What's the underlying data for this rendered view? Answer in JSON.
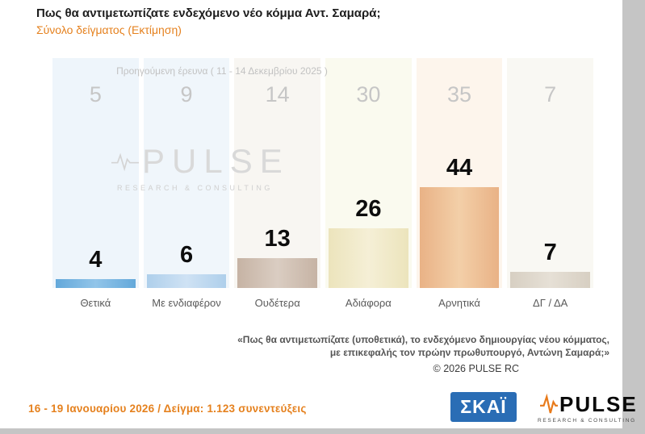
{
  "title": "Πως θα αντιμετωπίζατε ενδεχόμενο νέο κόμμα Αντ. Σαμαρά;",
  "subtitle": "Σύνολο δείγματος  (Εκτίμηση)",
  "previous_label": "Προηγούμενη έρευνα ( 11 - 14 Δεκεμβρίου 2025 )",
  "chart_data": {
    "type": "bar",
    "title": "Πως θα αντιμετωπίζατε ενδεχόμενο νέο κόμμα Αντ. Σαμαρά;",
    "subtitle": "Σύνολο δείγματος (Εκτίμηση)",
    "categories": [
      "Θετικά",
      "Με ενδιαφέρον",
      "Ουδέτερα",
      "Αδιάφορα",
      "Αρνητικά",
      "ΔΓ / ΔΑ"
    ],
    "series": [
      {
        "name": "Προηγούμενη έρευνα ( 11 - 14 Δεκεμβρίου 2025 )",
        "values": [
          5,
          9,
          14,
          30,
          35,
          7
        ]
      },
      {
        "name": "16 - 19 Ιανουαρίου 2026",
        "values": [
          4,
          6,
          13,
          26,
          44,
          7
        ]
      }
    ],
    "ylim": [
      0,
      50
    ],
    "grid": false,
    "legend_position": "none",
    "bar_colors": [
      "#63a8da",
      "#aecfeb",
      "#c6b3a4",
      "#ece4bc",
      "#e9b286",
      "#d7cfc2"
    ],
    "bar_colors_light": [
      "#92c5e9",
      "#cfe2f4",
      "#dacdc2",
      "#f5efd6",
      "#f3cfa8",
      "#e6e0d6"
    ],
    "band_colors": [
      "#eef5fb",
      "#f0f6fb",
      "#f8f6f2",
      "#fafaef",
      "#fdf5ec",
      "#f9f8f3"
    ]
  },
  "watermark": {
    "brand": "PULSE",
    "sub": "RESEARCH & CONSULTING"
  },
  "footnote": {
    "line1": "«Πως θα αντιμετωπίζατε (υποθετικά), το ενδεχόμενο δημιουργίας νέου κόμματος,",
    "line2": "με επικεφαλής τον πρώην πρωθυπουργό, Αντώνη Σαμαρά;»",
    "copyright": "©  2026  PULSE RC"
  },
  "footer": {
    "fieldwork": "16 - 19 Ιανουαρίου 2026  /  Δείγμα:  1.123 συνεντεύξεις",
    "skai": "ΣΚΑΪ",
    "pulse": "PULSE",
    "pulse_sub": "RESEARCH & CONSULTING"
  },
  "colors": {
    "accent_orange": "#e5811e",
    "title_text": "#1d1d1d",
    "prev_text": "#c6c6c6",
    "category_text": "#5a5a5a",
    "skai_blue": "#2a6db5",
    "surround_gray": "#c5c5c5"
  }
}
